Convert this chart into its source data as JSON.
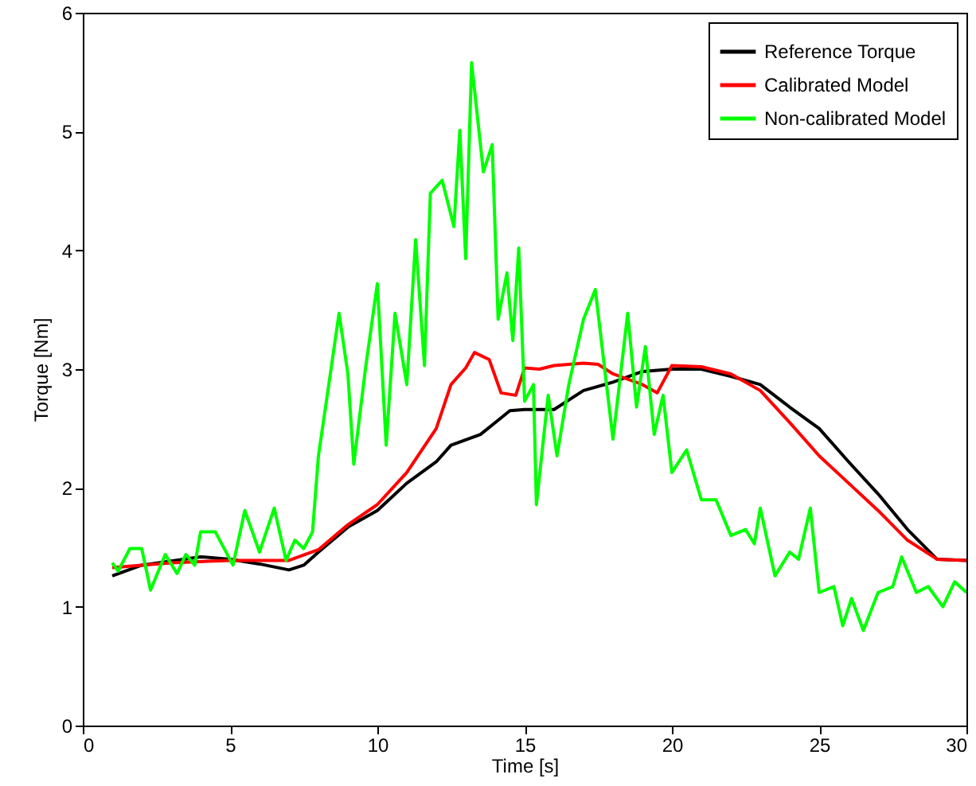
{
  "chart_data": {
    "type": "line",
    "xlabel": "Time [s]",
    "ylabel": "Torque [Nm]",
    "xlim": [
      0,
      30
    ],
    "xticks": [
      0,
      5,
      10,
      15,
      20,
      25,
      30
    ],
    "ylim": [
      0,
      6
    ],
    "yticks": [
      0,
      1,
      2,
      3,
      4,
      5,
      6
    ],
    "legend": "top right",
    "grid": false,
    "series": [
      {
        "name": "Reference Torque",
        "color": "#000000",
        "x": [
          1,
          2,
          4,
          5,
          6,
          7,
          7.5,
          8,
          9,
          10,
          11,
          12,
          12.5,
          13.5,
          14,
          14.5,
          15,
          16,
          17,
          18,
          19,
          20,
          21,
          22,
          23,
          24,
          25,
          26,
          27,
          28,
          29,
          30
        ],
        "values": [
          1.26,
          1.35,
          1.42,
          1.4,
          1.36,
          1.31,
          1.35,
          1.46,
          1.67,
          1.81,
          2.04,
          2.22,
          2.36,
          2.45,
          2.55,
          2.65,
          2.66,
          2.66,
          2.82,
          2.89,
          2.98,
          3.0,
          3.0,
          2.94,
          2.87,
          2.68,
          2.5,
          2.22,
          1.95,
          1.65,
          1.4,
          1.39
        ]
      },
      {
        "name": "Calibrated Model",
        "color": "#ff0000",
        "x": [
          1,
          3,
          5,
          7,
          8,
          9,
          10,
          11,
          12,
          12.5,
          13,
          13.3,
          13.8,
          14.2,
          14.7,
          15,
          15.5,
          16,
          17,
          17.5,
          18,
          19,
          19.5,
          20,
          21,
          22,
          23,
          24,
          25,
          26,
          27,
          28,
          29,
          30
        ],
        "values": [
          1.33,
          1.37,
          1.39,
          1.39,
          1.48,
          1.69,
          1.86,
          2.13,
          2.5,
          2.87,
          3.01,
          3.14,
          3.08,
          2.8,
          2.78,
          3.01,
          3.0,
          3.03,
          3.05,
          3.04,
          2.96,
          2.87,
          2.8,
          3.03,
          3.02,
          2.96,
          2.82,
          2.55,
          2.27,
          2.04,
          1.81,
          1.56,
          1.4,
          1.39
        ]
      },
      {
        "name": "Non-calibrated Model",
        "color": "#00ff00",
        "x": [
          1,
          1.2,
          1.6,
          2,
          2.3,
          2.8,
          3.2,
          3.5,
          3.8,
          4,
          4.5,
          5.1,
          5.5,
          6,
          6.5,
          6.9,
          7.2,
          7.5,
          7.8,
          8,
          8.3,
          8.7,
          9,
          9.2,
          9.6,
          10,
          10.3,
          10.6,
          11,
          11.3,
          11.6,
          11.8,
          12.2,
          12.6,
          12.8,
          13,
          13.2,
          13.6,
          13.9,
          14.1,
          14.4,
          14.6,
          14.8,
          15,
          15.3,
          15.4,
          15.8,
          16.1,
          16.5,
          17,
          17.4,
          18,
          18.5,
          18.8,
          19.1,
          19.4,
          19.7,
          20,
          20.5,
          21,
          21.5,
          22,
          22.5,
          22.8,
          23,
          23.5,
          24,
          24.3,
          24.7,
          25,
          25.5,
          25.8,
          26.1,
          26.5,
          27,
          27.5,
          27.8,
          28.3,
          28.7,
          29.2,
          29.6,
          30
        ],
        "values": [
          1.37,
          1.3,
          1.49,
          1.49,
          1.14,
          1.44,
          1.28,
          1.44,
          1.35,
          1.63,
          1.63,
          1.35,
          1.81,
          1.46,
          1.83,
          1.39,
          1.56,
          1.49,
          1.63,
          2.27,
          2.78,
          3.47,
          2.96,
          2.2,
          3.01,
          3.72,
          2.36,
          3.47,
          2.87,
          4.09,
          3.03,
          4.48,
          4.59,
          4.2,
          5.01,
          3.93,
          5.58,
          4.66,
          4.89,
          3.42,
          3.81,
          3.24,
          4.02,
          2.73,
          2.87,
          1.86,
          2.78,
          2.27,
          2.87,
          3.42,
          3.67,
          2.41,
          3.47,
          2.68,
          3.19,
          2.45,
          2.78,
          2.13,
          2.32,
          1.9,
          1.9,
          1.6,
          1.65,
          1.53,
          1.83,
          1.26,
          1.46,
          1.4,
          1.83,
          1.12,
          1.17,
          0.84,
          1.07,
          0.8,
          1.12,
          1.17,
          1.42,
          1.12,
          1.17,
          1.0,
          1.21,
          1.12
        ]
      }
    ]
  }
}
